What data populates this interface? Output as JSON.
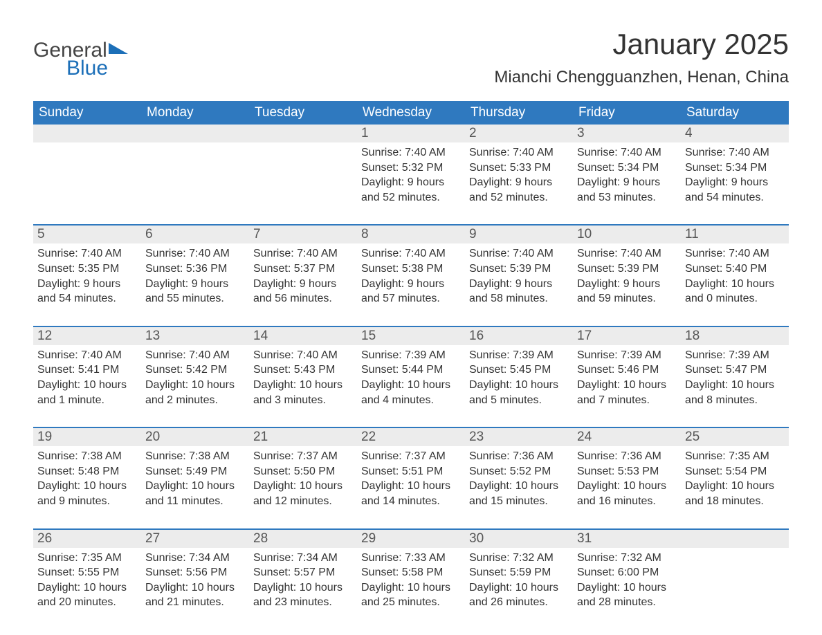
{
  "logo": {
    "text1": "General",
    "text2": "Blue"
  },
  "title": "January 2025",
  "location": "Mianchi Chengguanzhen, Henan, China",
  "colors": {
    "header_bg": "#2f79bf",
    "header_text": "#ffffff",
    "daynum_bg": "#ececec",
    "week_border": "#2f79bf",
    "body_bg": "#ffffff",
    "text": "#333333",
    "logo_gray": "#444444",
    "logo_blue": "#1c6fb8"
  },
  "days_of_week": [
    "Sunday",
    "Monday",
    "Tuesday",
    "Wednesday",
    "Thursday",
    "Friday",
    "Saturday"
  ],
  "weeks": [
    {
      "nums": [
        "",
        "",
        "",
        "1",
        "2",
        "3",
        "4"
      ],
      "cells": [
        {
          "lines": [
            "",
            "",
            "",
            ""
          ]
        },
        {
          "lines": [
            "",
            "",
            "",
            ""
          ]
        },
        {
          "lines": [
            "",
            "",
            "",
            ""
          ]
        },
        {
          "lines": [
            "Sunrise: 7:40 AM",
            "Sunset: 5:32 PM",
            "Daylight: 9 hours",
            "and 52 minutes."
          ]
        },
        {
          "lines": [
            "Sunrise: 7:40 AM",
            "Sunset: 5:33 PM",
            "Daylight: 9 hours",
            "and 52 minutes."
          ]
        },
        {
          "lines": [
            "Sunrise: 7:40 AM",
            "Sunset: 5:34 PM",
            "Daylight: 9 hours",
            "and 53 minutes."
          ]
        },
        {
          "lines": [
            "Sunrise: 7:40 AM",
            "Sunset: 5:34 PM",
            "Daylight: 9 hours",
            "and 54 minutes."
          ]
        }
      ]
    },
    {
      "nums": [
        "5",
        "6",
        "7",
        "8",
        "9",
        "10",
        "11"
      ],
      "cells": [
        {
          "lines": [
            "Sunrise: 7:40 AM",
            "Sunset: 5:35 PM",
            "Daylight: 9 hours",
            "and 54 minutes."
          ]
        },
        {
          "lines": [
            "Sunrise: 7:40 AM",
            "Sunset: 5:36 PM",
            "Daylight: 9 hours",
            "and 55 minutes."
          ]
        },
        {
          "lines": [
            "Sunrise: 7:40 AM",
            "Sunset: 5:37 PM",
            "Daylight: 9 hours",
            "and 56 minutes."
          ]
        },
        {
          "lines": [
            "Sunrise: 7:40 AM",
            "Sunset: 5:38 PM",
            "Daylight: 9 hours",
            "and 57 minutes."
          ]
        },
        {
          "lines": [
            "Sunrise: 7:40 AM",
            "Sunset: 5:39 PM",
            "Daylight: 9 hours",
            "and 58 minutes."
          ]
        },
        {
          "lines": [
            "Sunrise: 7:40 AM",
            "Sunset: 5:39 PM",
            "Daylight: 9 hours",
            "and 59 minutes."
          ]
        },
        {
          "lines": [
            "Sunrise: 7:40 AM",
            "Sunset: 5:40 PM",
            "Daylight: 10 hours",
            "and 0 minutes."
          ]
        }
      ]
    },
    {
      "nums": [
        "12",
        "13",
        "14",
        "15",
        "16",
        "17",
        "18"
      ],
      "cells": [
        {
          "lines": [
            "Sunrise: 7:40 AM",
            "Sunset: 5:41 PM",
            "Daylight: 10 hours",
            "and 1 minute."
          ]
        },
        {
          "lines": [
            "Sunrise: 7:40 AM",
            "Sunset: 5:42 PM",
            "Daylight: 10 hours",
            "and 2 minutes."
          ]
        },
        {
          "lines": [
            "Sunrise: 7:40 AM",
            "Sunset: 5:43 PM",
            "Daylight: 10 hours",
            "and 3 minutes."
          ]
        },
        {
          "lines": [
            "Sunrise: 7:39 AM",
            "Sunset: 5:44 PM",
            "Daylight: 10 hours",
            "and 4 minutes."
          ]
        },
        {
          "lines": [
            "Sunrise: 7:39 AM",
            "Sunset: 5:45 PM",
            "Daylight: 10 hours",
            "and 5 minutes."
          ]
        },
        {
          "lines": [
            "Sunrise: 7:39 AM",
            "Sunset: 5:46 PM",
            "Daylight: 10 hours",
            "and 7 minutes."
          ]
        },
        {
          "lines": [
            "Sunrise: 7:39 AM",
            "Sunset: 5:47 PM",
            "Daylight: 10 hours",
            "and 8 minutes."
          ]
        }
      ]
    },
    {
      "nums": [
        "19",
        "20",
        "21",
        "22",
        "23",
        "24",
        "25"
      ],
      "cells": [
        {
          "lines": [
            "Sunrise: 7:38 AM",
            "Sunset: 5:48 PM",
            "Daylight: 10 hours",
            "and 9 minutes."
          ]
        },
        {
          "lines": [
            "Sunrise: 7:38 AM",
            "Sunset: 5:49 PM",
            "Daylight: 10 hours",
            "and 11 minutes."
          ]
        },
        {
          "lines": [
            "Sunrise: 7:37 AM",
            "Sunset: 5:50 PM",
            "Daylight: 10 hours",
            "and 12 minutes."
          ]
        },
        {
          "lines": [
            "Sunrise: 7:37 AM",
            "Sunset: 5:51 PM",
            "Daylight: 10 hours",
            "and 14 minutes."
          ]
        },
        {
          "lines": [
            "Sunrise: 7:36 AM",
            "Sunset: 5:52 PM",
            "Daylight: 10 hours",
            "and 15 minutes."
          ]
        },
        {
          "lines": [
            "Sunrise: 7:36 AM",
            "Sunset: 5:53 PM",
            "Daylight: 10 hours",
            "and 16 minutes."
          ]
        },
        {
          "lines": [
            "Sunrise: 7:35 AM",
            "Sunset: 5:54 PM",
            "Daylight: 10 hours",
            "and 18 minutes."
          ]
        }
      ]
    },
    {
      "nums": [
        "26",
        "27",
        "28",
        "29",
        "30",
        "31",
        ""
      ],
      "cells": [
        {
          "lines": [
            "Sunrise: 7:35 AM",
            "Sunset: 5:55 PM",
            "Daylight: 10 hours",
            "and 20 minutes."
          ]
        },
        {
          "lines": [
            "Sunrise: 7:34 AM",
            "Sunset: 5:56 PM",
            "Daylight: 10 hours",
            "and 21 minutes."
          ]
        },
        {
          "lines": [
            "Sunrise: 7:34 AM",
            "Sunset: 5:57 PM",
            "Daylight: 10 hours",
            "and 23 minutes."
          ]
        },
        {
          "lines": [
            "Sunrise: 7:33 AM",
            "Sunset: 5:58 PM",
            "Daylight: 10 hours",
            "and 25 minutes."
          ]
        },
        {
          "lines": [
            "Sunrise: 7:32 AM",
            "Sunset: 5:59 PM",
            "Daylight: 10 hours",
            "and 26 minutes."
          ]
        },
        {
          "lines": [
            "Sunrise: 7:32 AM",
            "Sunset: 6:00 PM",
            "Daylight: 10 hours",
            "and 28 minutes."
          ]
        },
        {
          "lines": [
            "",
            "",
            "",
            ""
          ]
        }
      ]
    }
  ]
}
